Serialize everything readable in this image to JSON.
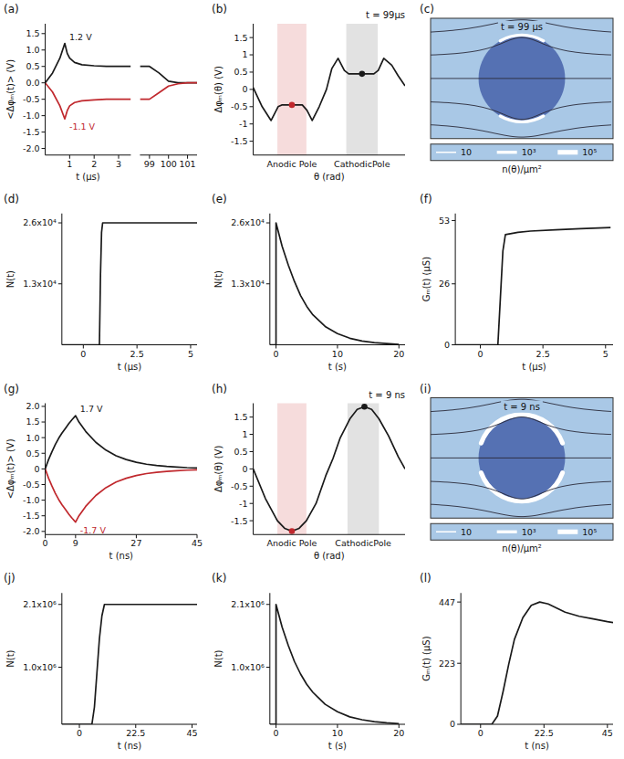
{
  "chart_data": [
    {
      "panel": "(a)",
      "type": "line",
      "y_label": "<Δφₘ(t)> (V)",
      "x_label": "t (μs)",
      "xlim": [
        0,
        3.5
      ],
      "xticks": [
        1,
        2,
        3
      ],
      "ylim": [
        -2.2,
        1.8
      ],
      "yticks": [
        {
          "value": -2.0,
          "label": "-2.0"
        },
        -1.5,
        {
          "value": -1.0,
          "label": "-1.0"
        },
        -0.5,
        {
          "value": 0,
          "label": "0.0"
        },
        0.5,
        {
          "value": 1.0,
          "label": "1.0"
        },
        1.5
      ],
      "series": [
        {
          "color": "#1a1a1a",
          "x": [
            0,
            0.3,
            0.6,
            0.8,
            0.9,
            1.0,
            1.2,
            1.5,
            2,
            2.5,
            3,
            3.5
          ],
          "values": [
            0,
            0.3,
            0.75,
            1.2,
            0.9,
            0.75,
            0.62,
            0.55,
            0.52,
            0.5,
            0.5,
            0.5
          ]
        },
        {
          "color": "#c0282d",
          "x": [
            0,
            0.3,
            0.6,
            0.8,
            0.9,
            1.0,
            1.2,
            1.5,
            2,
            2.5,
            3,
            3.5
          ],
          "values": [
            0,
            -0.28,
            -0.7,
            -1.1,
            -0.85,
            -0.7,
            -0.6,
            -0.55,
            -0.52,
            -0.5,
            -0.5,
            -0.5
          ]
        }
      ],
      "annotations": [
        {
          "text": "1.2 V",
          "x": 0.8,
          "y": 1.2,
          "color": "#1a1a1a"
        },
        {
          "text": "-1.1 V",
          "x": 0.8,
          "y": -1.1,
          "color": "#c0282d"
        }
      ]
    },
    {
      "type": "line",
      "tick_labels": "x",
      "xlim": [
        98.5,
        101.5
      ],
      "xticks": [
        99,
        100,
        101
      ],
      "ylim": [
        -2.2,
        1.8
      ],
      "series": [
        {
          "color": "#1a1a1a",
          "x": [
            98.5,
            99,
            99.5,
            100,
            100.5,
            101,
            101.5
          ],
          "values": [
            0.5,
            0.5,
            0.3,
            0.05,
            0.0,
            0,
            0
          ]
        },
        {
          "color": "#c0282d",
          "x": [
            98.5,
            99,
            99.5,
            100,
            100.5,
            101,
            101.5
          ],
          "values": [
            -0.5,
            -0.5,
            -0.3,
            -0.1,
            -0.03,
            0,
            0
          ]
        }
      ]
    },
    {
      "panel": "(b)",
      "type": "line",
      "title": "t = 99µs",
      "y_label": "Δφₘ(θ) (V)",
      "x_label": "θ (rad)",
      "xlim": [
        0,
        6.28
      ],
      "ylim": [
        -1.9,
        1.9
      ],
      "yticks": [
        -1.5,
        -1,
        -0.5,
        0,
        0.5,
        1,
        1.5
      ],
      "regions": [
        {
          "label": "Anodic Pole",
          "range": [
            1.0,
            2.2
          ],
          "color": "#f6dcdc"
        },
        {
          "label": "CathodicPole",
          "range": [
            3.85,
            5.15
          ],
          "color": "#e2e2e2"
        }
      ],
      "series": [
        {
          "color": "#1a1a1a",
          "x": [
            0,
            0.37,
            0.74,
            1.03,
            1.18,
            2.03,
            2.22,
            2.44,
            2.73,
            3.03,
            3.25,
            3.51,
            3.77,
            3.95,
            4.99,
            5.17,
            5.4,
            5.73,
            5.99,
            6.28
          ],
          "values": [
            0.05,
            -0.5,
            -0.9,
            -0.5,
            -0.45,
            -0.45,
            -0.6,
            -0.9,
            -0.5,
            0,
            0.6,
            0.9,
            0.55,
            0.45,
            0.45,
            0.55,
            0.9,
            0.7,
            0.4,
            0.1
          ]
        }
      ],
      "points": [
        {
          "x": 1.6,
          "y": -0.45,
          "color": "#c0282d"
        },
        {
          "x": 4.5,
          "y": 0.45,
          "color": "#1a1a1a"
        }
      ]
    },
    {
      "panel": "(c)",
      "type": "diagram",
      "title": "t = 99 µs",
      "arcs": [
        {
          "from": 60,
          "to": 120,
          "density": 1000
        },
        {
          "from": 240,
          "to": 300,
          "density": 1000
        }
      ],
      "colorbar": {
        "label": "n(θ)/μm²",
        "ticks": [
          {
            "value": 10,
            "label": "10"
          },
          {
            "value": 1000,
            "label": "10³"
          },
          {
            "value": 100000,
            "label": "10⁵"
          }
        ]
      }
    },
    {
      "panel": "(d)",
      "type": "line",
      "y_label": "N(t)",
      "x_label": "t (μs)",
      "xlim": [
        -1,
        5.3
      ],
      "xticks": [
        0,
        2.5,
        5
      ],
      "ylim": [
        0,
        28000
      ],
      "yticks": [
        {
          "value": 13000,
          "label": "1.3x10⁴"
        },
        {
          "value": 26000,
          "label": "2.6x10⁴"
        }
      ],
      "series": [
        {
          "color": "#1a1a1a",
          "x": [
            -1,
            0.75,
            0.8,
            0.85,
            0.9,
            5.3
          ],
          "values": [
            0,
            0,
            15000,
            24000,
            26000,
            26000
          ]
        }
      ]
    },
    {
      "panel": "(e)",
      "type": "line",
      "y_label": "N(t)",
      "x_label": "t (s)",
      "xlim": [
        -1,
        21
      ],
      "xticks": [
        0,
        10,
        20
      ],
      "ylim": [
        0,
        28000
      ],
      "yticks": [
        {
          "value": 13000,
          "label": "1.3x10⁴"
        },
        {
          "value": 26000,
          "label": "2.6x10⁴"
        }
      ],
      "series": [
        {
          "color": "#1a1a1a",
          "x": [
            -1,
            0,
            0,
            1,
            2,
            3,
            4,
            5,
            6,
            8,
            10,
            12,
            14,
            16,
            18,
            20
          ],
          "values": [
            0,
            0,
            26000,
            21000,
            17000,
            13500,
            10500,
            8200,
            6400,
            3900,
            2400,
            1400,
            800,
            450,
            250,
            100
          ]
        }
      ]
    },
    {
      "panel": "(f)",
      "type": "line",
      "y_label": "Gₘ(t) (μS)",
      "x_label": "t (μs)",
      "xlim": [
        -1,
        5.3
      ],
      "xticks": [
        0,
        2.5,
        5
      ],
      "ylim": [
        0,
        56
      ],
      "yticks": [
        0,
        26,
        53
      ],
      "series": [
        {
          "color": "#1a1a1a",
          "x": [
            -1,
            0.7,
            0.8,
            0.9,
            1.0,
            1.5,
            2,
            3,
            4,
            5.2
          ],
          "values": [
            0,
            0,
            20,
            40,
            47,
            48,
            48.5,
            49,
            49.5,
            50
          ]
        }
      ]
    },
    {
      "panel": "(g)",
      "type": "line",
      "y_label": "<Δφₘ(t)> (V)",
      "x_label": "t (ns)",
      "xlim": [
        0,
        45
      ],
      "xticks": [
        0,
        9,
        27,
        45
      ],
      "ylim": [
        -2.1,
        2.1
      ],
      "yticks": [
        {
          "value": -2.0,
          "label": "-2.0"
        },
        -1.5,
        {
          "value": -1.0,
          "label": "-1.0"
        },
        -0.5,
        0,
        0.5,
        {
          "value": 1.0,
          "label": "1.0"
        },
        1.5,
        {
          "value": 2.0,
          "label": "2.0"
        }
      ],
      "series": [
        {
          "color": "#1a1a1a",
          "x": [
            0,
            1,
            2,
            3,
            4,
            5,
            6,
            7,
            8,
            9,
            10,
            12,
            15,
            18,
            21,
            24,
            27,
            30,
            33,
            36,
            39,
            42,
            45
          ],
          "values": [
            0,
            0.3,
            0.55,
            0.78,
            0.98,
            1.15,
            1.3,
            1.45,
            1.58,
            1.7,
            1.5,
            1.2,
            0.85,
            0.6,
            0.42,
            0.3,
            0.21,
            0.15,
            0.11,
            0.08,
            0.06,
            0.04,
            0.03
          ]
        },
        {
          "color": "#c0282d",
          "x": [
            0,
            1,
            2,
            3,
            4,
            5,
            6,
            7,
            8,
            9,
            10,
            12,
            15,
            18,
            21,
            24,
            27,
            30,
            33,
            36,
            39,
            42,
            45
          ],
          "values": [
            0,
            -0.3,
            -0.55,
            -0.78,
            -0.98,
            -1.15,
            -1.3,
            -1.45,
            -1.58,
            -1.7,
            -1.5,
            -1.2,
            -0.85,
            -0.6,
            -0.42,
            -0.3,
            -0.21,
            -0.15,
            -0.11,
            -0.08,
            -0.06,
            -0.04,
            -0.03
          ]
        }
      ],
      "annotations": [
        {
          "text": "1.7 V",
          "x": 9,
          "y": 1.7,
          "color": "#1a1a1a"
        },
        {
          "text": "-1.7 V",
          "x": 9,
          "y": -1.7,
          "color": "#c0282d"
        }
      ]
    },
    {
      "panel": "(h)",
      "type": "line",
      "title": "t = 9 ns",
      "y_label": "Δφₘ(θ) (V)",
      "x_label": "θ (rad)",
      "xlim": [
        0,
        6.28
      ],
      "ylim": [
        -1.9,
        1.9
      ],
      "yticks": [
        -1.5,
        -1,
        -0.5,
        0,
        0.5,
        1,
        1.5
      ],
      "regions": [
        {
          "label": "Anodic Pole",
          "range": [
            1.0,
            2.2
          ],
          "color": "#f6dcdc"
        },
        {
          "label": "CathodicPole",
          "range": [
            3.9,
            5.2
          ],
          "color": "#e2e2e2"
        }
      ],
      "series": [
        {
          "color": "#1a1a1a",
          "x": [
            0,
            0.5,
            1.0,
            1.3,
            1.6,
            1.9,
            2.2,
            2.6,
            3.0,
            3.3,
            3.6,
            4.0,
            4.3,
            4.6,
            4.9,
            5.2,
            5.6,
            6.0,
            6.28
          ],
          "values": [
            0,
            -0.85,
            -1.5,
            -1.72,
            -1.8,
            -1.72,
            -1.5,
            -1.0,
            -0.2,
            0.3,
            0.9,
            1.45,
            1.72,
            1.8,
            1.72,
            1.45,
            0.95,
            0.35,
            0
          ]
        }
      ],
      "points": [
        {
          "x": 1.6,
          "y": -1.8,
          "color": "#c0282d"
        },
        {
          "x": 4.6,
          "y": 1.8,
          "color": "#1a1a1a"
        }
      ]
    },
    {
      "panel": "(i)",
      "type": "diagram",
      "title": "t = 9 ns",
      "arcs": [
        {
          "from": 20,
          "to": 160,
          "density": 100000
        },
        {
          "from": 200,
          "to": 340,
          "density": 100000
        }
      ],
      "colorbar": {
        "label": "n(θ)/μm²",
        "ticks": [
          {
            "value": 10,
            "label": "10"
          },
          {
            "value": 1000,
            "label": "10³"
          },
          {
            "value": 100000,
            "label": "10⁵"
          }
        ]
      }
    },
    {
      "panel": "(j)",
      "type": "line",
      "y_label": "N(t)",
      "x_label": "t (ns)",
      "xlim": [
        -7,
        47
      ],
      "xticks": [
        0,
        22.5,
        45
      ],
      "ylim": [
        0,
        2300000
      ],
      "yticks": [
        {
          "value": 1000000,
          "label": "1.0x10⁶"
        },
        {
          "value": 2100000,
          "label": "2.1x10⁶"
        }
      ],
      "series": [
        {
          "color": "#1a1a1a",
          "x": [
            -7,
            5,
            6,
            7,
            8,
            9,
            10,
            47
          ],
          "values": [
            0,
            0,
            300000,
            900000,
            1500000,
            1900000,
            2100000,
            2100000
          ]
        }
      ]
    },
    {
      "panel": "(k)",
      "type": "line",
      "y_label": "N(t)",
      "x_label": "t (s)",
      "xlim": [
        -1,
        21
      ],
      "xticks": [
        0,
        10,
        20
      ],
      "ylim": [
        0,
        2300000
      ],
      "yticks": [
        {
          "value": 1000000,
          "label": "1.0x10⁶"
        },
        {
          "value": 2100000,
          "label": "2.1x10⁶"
        }
      ],
      "series": [
        {
          "color": "#1a1a1a",
          "x": [
            -1,
            0,
            0,
            1,
            2,
            3,
            4,
            5,
            6,
            8,
            10,
            12,
            14,
            16,
            18,
            20
          ],
          "values": [
            0,
            0,
            2100000,
            1700000,
            1380000,
            1100000,
            880000,
            700000,
            560000,
            350000,
            220000,
            130000,
            80000,
            45000,
            25000,
            10000
          ]
        }
      ]
    },
    {
      "panel": "(l)",
      "type": "line",
      "y_label": "Gₘ(t) (μS)",
      "x_label": "t (ns)",
      "xlim": [
        -7,
        47
      ],
      "xticks": [
        0,
        22.5,
        45
      ],
      "ylim": [
        0,
        480
      ],
      "yticks": [
        0,
        223,
        447
      ],
      "series": [
        {
          "color": "#1a1a1a",
          "x": [
            -7,
            4,
            6,
            8,
            10,
            12,
            15,
            18,
            21,
            24,
            27,
            30,
            35,
            40,
            45,
            47
          ],
          "values": [
            0,
            0,
            30,
            120,
            220,
            310,
            390,
            435,
            447,
            440,
            425,
            410,
            395,
            385,
            375,
            372
          ]
        }
      ]
    }
  ]
}
